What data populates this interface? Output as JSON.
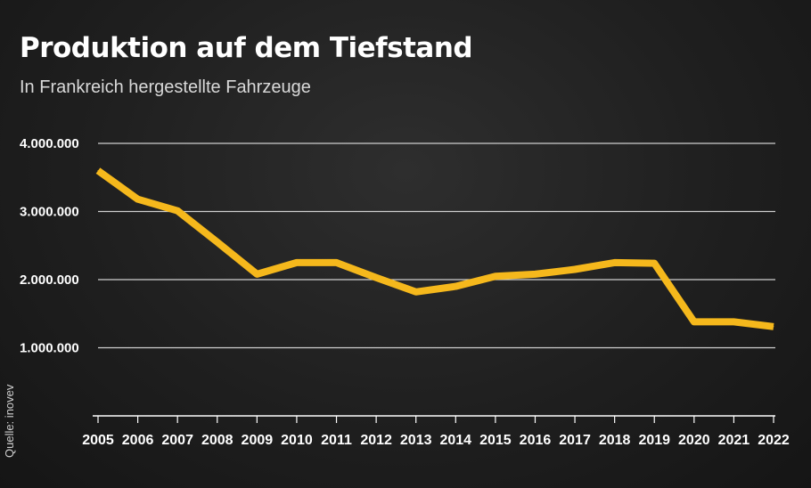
{
  "chart_data": {
    "type": "line",
    "title": "Produktion auf dem Tiefstand",
    "subtitle": "In Frankreich hergestellte Fahrzeuge",
    "source": "Quelle: inovev",
    "x": [
      "2005",
      "2006",
      "2007",
      "2008",
      "2009",
      "2010",
      "2011",
      "2012",
      "2013",
      "2014",
      "2015",
      "2016",
      "2017",
      "2018",
      "2019",
      "2020",
      "2021",
      "2022"
    ],
    "series": [
      {
        "values": [
          3600000,
          3180000,
          3010000,
          2550000,
          2080000,
          2250000,
          2250000,
          2030000,
          1820000,
          1900000,
          2050000,
          2080000,
          2150000,
          2250000,
          2240000,
          1380000,
          1380000,
          1310000
        ]
      }
    ],
    "yticks": [
      1000000,
      2000000,
      3000000,
      4000000
    ],
    "ytick_labels": [
      "1.000.000",
      "2.000.000",
      "3.000.000",
      "4.000.000"
    ],
    "ylim": [
      0,
      4000000
    ],
    "grid": true,
    "colors": {
      "line": "#f5b81c",
      "grid": "#cfcfcf",
      "axis": "#ffffff"
    }
  }
}
